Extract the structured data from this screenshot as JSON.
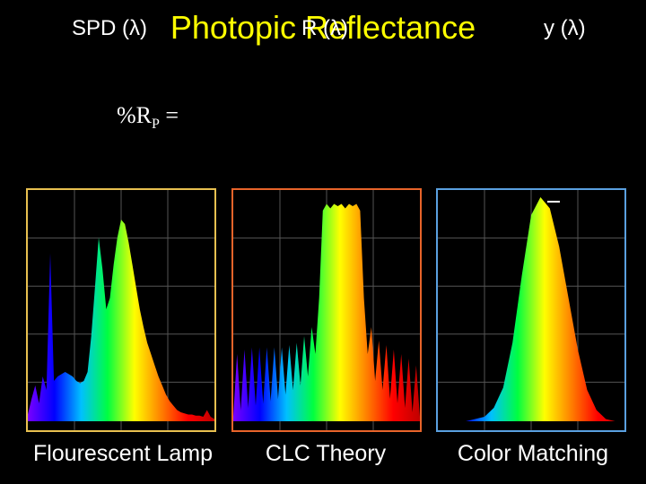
{
  "title": "Photopic Reflectance",
  "formula": {
    "main": "%R",
    "sub": "P",
    "tail": " ="
  },
  "colors": {
    "title": "#ffff00",
    "panel1_border": "#e8c050",
    "panel2_border": "#e8642a",
    "panel3_border": "#5aa0e0"
  },
  "chart_data": [
    {
      "type": "area",
      "label": "SPD (λ)",
      "caption": "Flourescent Lamp",
      "x": [
        0,
        0.02,
        0.04,
        0.06,
        0.08,
        0.1,
        0.12,
        0.14,
        0.16,
        0.18,
        0.2,
        0.22,
        0.24,
        0.26,
        0.28,
        0.3,
        0.32,
        0.34,
        0.36,
        0.38,
        0.4,
        0.42,
        0.44,
        0.46,
        0.48,
        0.5,
        0.52,
        0.54,
        0.56,
        0.58,
        0.6,
        0.62,
        0.64,
        0.66,
        0.68,
        0.7,
        0.72,
        0.74,
        0.76,
        0.78,
        0.8,
        0.82,
        0.84,
        0.86,
        0.88,
        0.9,
        0.92,
        0.94,
        0.96,
        0.98,
        1.0
      ],
      "values": [
        0.03,
        0.1,
        0.16,
        0.08,
        0.2,
        0.14,
        0.75,
        0.18,
        0.2,
        0.21,
        0.22,
        0.21,
        0.2,
        0.18,
        0.17,
        0.18,
        0.22,
        0.38,
        0.6,
        0.82,
        0.68,
        0.5,
        0.55,
        0.7,
        0.82,
        0.9,
        0.88,
        0.8,
        0.7,
        0.6,
        0.5,
        0.42,
        0.35,
        0.3,
        0.25,
        0.2,
        0.16,
        0.12,
        0.09,
        0.07,
        0.05,
        0.04,
        0.035,
        0.03,
        0.03,
        0.025,
        0.025,
        0.02,
        0.05,
        0.02,
        0.01
      ]
    },
    {
      "type": "area",
      "label": "R (λ)",
      "caption": "CLC Theory",
      "x": [
        0,
        0.02,
        0.04,
        0.06,
        0.08,
        0.1,
        0.12,
        0.14,
        0.16,
        0.18,
        0.2,
        0.22,
        0.24,
        0.26,
        0.28,
        0.3,
        0.32,
        0.34,
        0.36,
        0.38,
        0.4,
        0.42,
        0.44,
        0.46,
        0.48,
        0.5,
        0.52,
        0.54,
        0.56,
        0.58,
        0.6,
        0.62,
        0.64,
        0.66,
        0.68,
        0.7,
        0.72,
        0.74,
        0.76,
        0.78,
        0.8,
        0.82,
        0.84,
        0.86,
        0.88,
        0.9,
        0.92,
        0.94,
        0.96,
        0.98,
        1.0
      ],
      "values": [
        0.02,
        0.3,
        0.05,
        0.32,
        0.06,
        0.33,
        0.07,
        0.33,
        0.08,
        0.33,
        0.09,
        0.33,
        0.1,
        0.33,
        0.12,
        0.34,
        0.14,
        0.35,
        0.16,
        0.38,
        0.2,
        0.42,
        0.3,
        0.55,
        0.94,
        0.97,
        0.95,
        0.97,
        0.96,
        0.97,
        0.95,
        0.97,
        0.96,
        0.97,
        0.94,
        0.55,
        0.3,
        0.42,
        0.18,
        0.36,
        0.14,
        0.34,
        0.1,
        0.32,
        0.08,
        0.3,
        0.06,
        0.28,
        0.04,
        0.25,
        0.02
      ]
    },
    {
      "type": "area",
      "label": "y (λ)",
      "caption": "Color Matching",
      "x": [
        0,
        0.05,
        0.1,
        0.15,
        0.2,
        0.25,
        0.3,
        0.35,
        0.4,
        0.45,
        0.5,
        0.55,
        0.6,
        0.65,
        0.7,
        0.75,
        0.8,
        0.85,
        0.9,
        0.95,
        1.0
      ],
      "values": [
        0,
        0,
        0,
        0,
        0.01,
        0.02,
        0.06,
        0.15,
        0.35,
        0.65,
        0.92,
        1.0,
        0.95,
        0.78,
        0.55,
        0.32,
        0.14,
        0.05,
        0.01,
        0,
        0
      ]
    }
  ]
}
